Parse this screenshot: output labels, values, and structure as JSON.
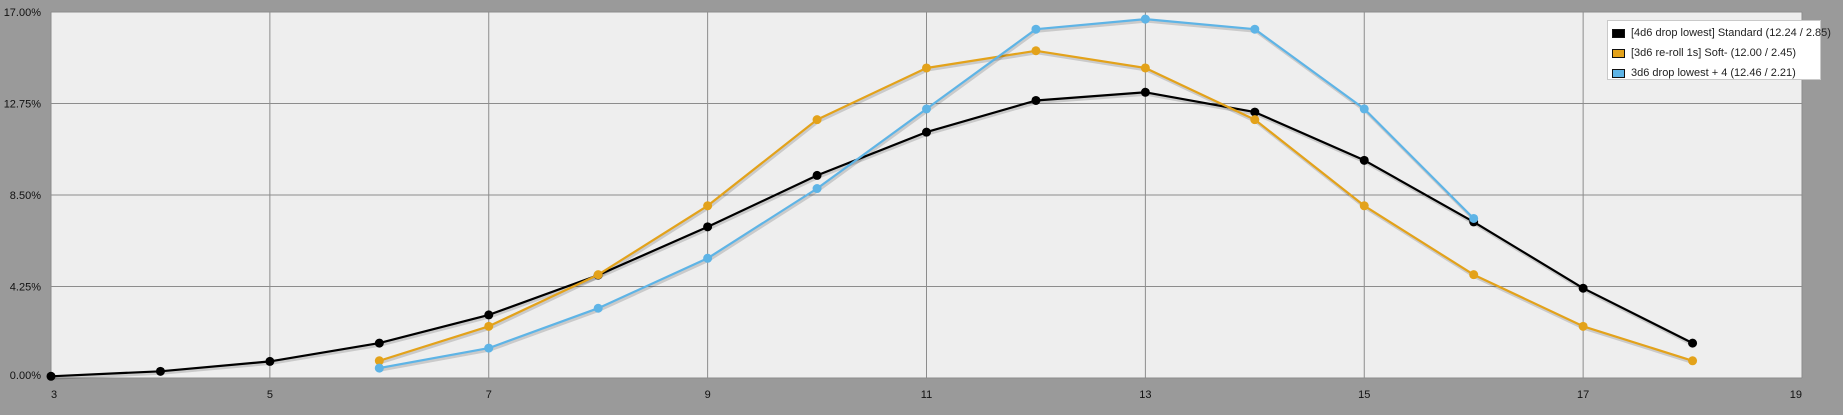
{
  "chart_data": {
    "type": "line",
    "title": "",
    "xlabel": "",
    "ylabel": "",
    "xlim": [
      3,
      19
    ],
    "ylim": [
      0,
      17
    ],
    "x_ticks": [
      3,
      5,
      7,
      9,
      11,
      13,
      15,
      17,
      19
    ],
    "y_ticks": [
      0,
      4.25,
      8.5,
      12.75,
      17
    ],
    "y_tick_labels": [
      "0.00%",
      "4.25%",
      "8.50%",
      "12.75%",
      "17.00%"
    ],
    "grid": true,
    "legend_position": "top-right",
    "series": [
      {
        "name": "[4d6 drop lowest] Standard (12.24 / 2.85)",
        "color": "#000000",
        "x": [
          3,
          4,
          5,
          6,
          7,
          8,
          9,
          10,
          11,
          12,
          13,
          14,
          15,
          16,
          17,
          18
        ],
        "values": [
          0.08,
          0.31,
          0.77,
          1.62,
          2.93,
          4.78,
          7.02,
          9.41,
          11.42,
          12.89,
          13.27,
          12.35,
          10.11,
          7.25,
          4.17,
          1.62
        ]
      },
      {
        "name": "[3d6 re-roll 1s] Soft- (12.00 / 2.45)",
        "color": "#e3a21a",
        "x": [
          6,
          7,
          8,
          9,
          10,
          11,
          12,
          13,
          14,
          15,
          16,
          17,
          18
        ],
        "values": [
          0.8,
          2.4,
          4.8,
          8.0,
          12.0,
          14.4,
          15.2,
          14.4,
          12.0,
          8.0,
          4.8,
          2.4,
          0.8
        ]
      },
      {
        "name": "3d6 drop lowest + 4 (12.46 / 2.21)",
        "color": "#5eb4e6",
        "x": [
          6,
          7,
          8,
          9,
          10,
          11,
          12,
          13,
          14,
          15,
          16
        ],
        "values": [
          0.46,
          1.39,
          3.24,
          5.56,
          8.8,
          12.5,
          16.2,
          16.67,
          16.2,
          12.5,
          7.41
        ]
      }
    ]
  }
}
